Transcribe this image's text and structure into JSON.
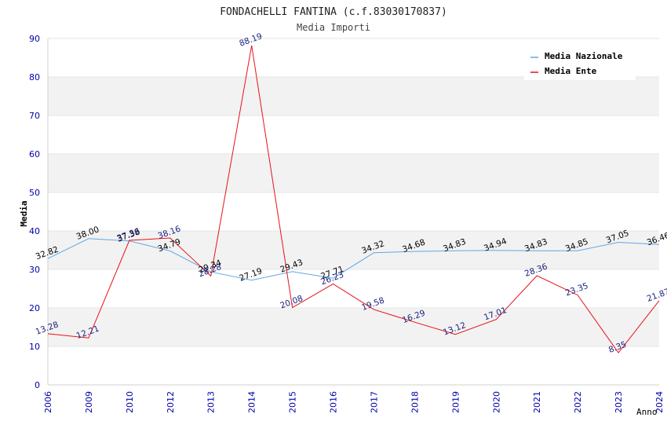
{
  "chart_data": {
    "type": "line",
    "title": "FONDACHELLI FANTINA (c.f.83030170837)",
    "subtitle": "Media Importi",
    "xlabel": "Anno",
    "ylabel": "Media",
    "ylim": [
      0,
      90
    ],
    "yticks": [
      0,
      10,
      20,
      30,
      40,
      50,
      60,
      70,
      80,
      90
    ],
    "grid": "horizontal alternating bands",
    "legend_position": "top-right",
    "categories": [
      "2006",
      "2009",
      "2010",
      "2012",
      "2013",
      "2014",
      "2015",
      "2016",
      "2017",
      "2018",
      "2019",
      "2020",
      "2021",
      "2022",
      "2023",
      "2024"
    ],
    "series": [
      {
        "name": "Media Nazionale",
        "color": "#5fa8e6",
        "label_color": "#000000",
        "values": [
          32.82,
          38.0,
          37.38,
          34.79,
          29.34,
          27.19,
          29.43,
          27.71,
          34.32,
          34.68,
          34.83,
          34.94,
          34.83,
          34.85,
          37.05,
          36.46
        ],
        "labels": [
          "32.82",
          "38.00",
          "37.38",
          "34.79",
          "29.34",
          "27.19",
          "29.43",
          "27.71",
          "34.32",
          "34.68",
          "34.83",
          "34.94",
          "34.83",
          "34.85",
          "37.05",
          "36.46"
        ]
      },
      {
        "name": "Media Ente",
        "color": "#e8101a",
        "label_color": "#1a237e",
        "values": [
          13.28,
          12.21,
          37.56,
          38.16,
          28.28,
          88.19,
          20.08,
          26.23,
          19.58,
          16.29,
          13.12,
          17.01,
          28.36,
          23.35,
          8.35,
          21.87
        ],
        "labels": [
          "13.28",
          "12.21",
          "37.56",
          "38.16",
          "28.28",
          "88.19",
          "20.08",
          "26.23",
          "19.58",
          "16.29",
          "13.12",
          "17.01",
          "28.36",
          "23.35",
          "8.35",
          "21.87"
        ]
      }
    ]
  },
  "colors": {
    "axis_tick_text": "#0000aa",
    "band": "#f2f2f2",
    "axis_line": "#d0d0d0"
  }
}
